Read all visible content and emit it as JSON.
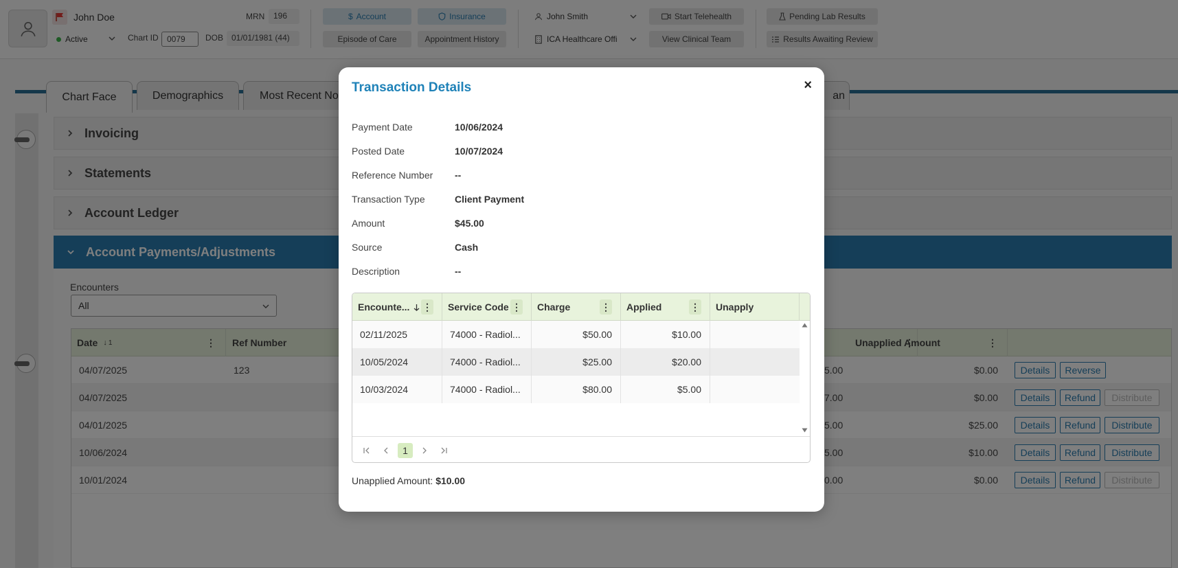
{
  "header": {
    "patient_name": "John Doe",
    "status": "Active",
    "mrn_label": "MRN",
    "mrn_value": "196",
    "chart_id_label": "Chart ID",
    "chart_id_value": "0079",
    "dob_label": "DOB",
    "dob_value": "01/01/1981 (44)",
    "account_btn": "Account",
    "insurance_btn": "Insurance",
    "episode_btn": "Episode of Care",
    "appt_history_btn": "Appointment History",
    "provider": "John Smith",
    "facility": "ICA Healthcare Offi",
    "telehealth_btn": "Start Telehealth",
    "clinical_team_btn": "View Clinical Team",
    "pending_lab_btn": "Pending Lab Results",
    "results_review_btn": "Results Awaiting Review"
  },
  "tabs": [
    {
      "label": "Chart Face"
    },
    {
      "label": "Demographics"
    },
    {
      "label": "Most Recent Not"
    },
    {
      "label": "an"
    }
  ],
  "sections": {
    "invoicing": "Invoicing",
    "statements": "Statements",
    "ledger": "Account Ledger",
    "payments": "Account Payments/Adjustments"
  },
  "encounters": {
    "label": "Encounters",
    "selected": "All"
  },
  "payments_table": {
    "headers": {
      "date": "Date",
      "date_sort": "1",
      "ref": "Ref Number",
      "unapplied": "Unapplied Amount"
    },
    "rows": [
      {
        "date": "04/07/2025",
        "ref": "123",
        "partial": "5.00",
        "unapplied": "$0.00",
        "b1": "Details",
        "b2": "Reverse"
      },
      {
        "date": "04/07/2025",
        "ref": "",
        "partial": "7.00",
        "unapplied": "$0.00",
        "b1": "Details",
        "b2": "Refund",
        "b3": "Distribute"
      },
      {
        "date": "04/01/2025",
        "ref": "",
        "partial": "5.00",
        "unapplied": "$25.00",
        "b1": "Details",
        "b2": "Refund",
        "b3": "Distribute"
      },
      {
        "date": "10/06/2024",
        "ref": "",
        "partial": "5.00",
        "unapplied": "$10.00",
        "b1": "Details",
        "b2": "Refund",
        "b3": "Distribute"
      },
      {
        "date": "10/01/2024",
        "ref": "",
        "partial": "0.00",
        "unapplied": "$0.00",
        "b1": "Details",
        "b2": "Refund",
        "b3": "Distribute"
      }
    ]
  },
  "modal": {
    "title": "Transaction Details",
    "close": "×",
    "fields": [
      {
        "label": "Payment Date",
        "value": "10/06/2024"
      },
      {
        "label": "Posted Date",
        "value": "10/07/2024"
      },
      {
        "label": "Reference Number",
        "value": "--"
      },
      {
        "label": "Transaction Type",
        "value": "Client Payment"
      },
      {
        "label": "Amount",
        "value": "$45.00"
      },
      {
        "label": "Source",
        "value": "Cash"
      },
      {
        "label": "Description",
        "value": "--"
      }
    ],
    "grid": {
      "headers": {
        "encounter": "Encounte...",
        "service_code": "Service Code",
        "charge": "Charge",
        "applied": "Applied",
        "unapply": "Unapply"
      },
      "rows": [
        {
          "encounter": "02/11/2025",
          "service_code": "74000 - Radiol...",
          "charge": "$50.00",
          "applied": "$10.00"
        },
        {
          "encounter": "10/05/2024",
          "service_code": "74000 - Radiol...",
          "charge": "$25.00",
          "applied": "$20.00"
        },
        {
          "encounter": "10/03/2024",
          "service_code": "74000 - Radiol...",
          "charge": "$80.00",
          "applied": "$5.00"
        }
      ],
      "current_page": "1"
    },
    "unapplied_label": "Unapplied Amount:",
    "unapplied_value": "$10.00"
  }
}
